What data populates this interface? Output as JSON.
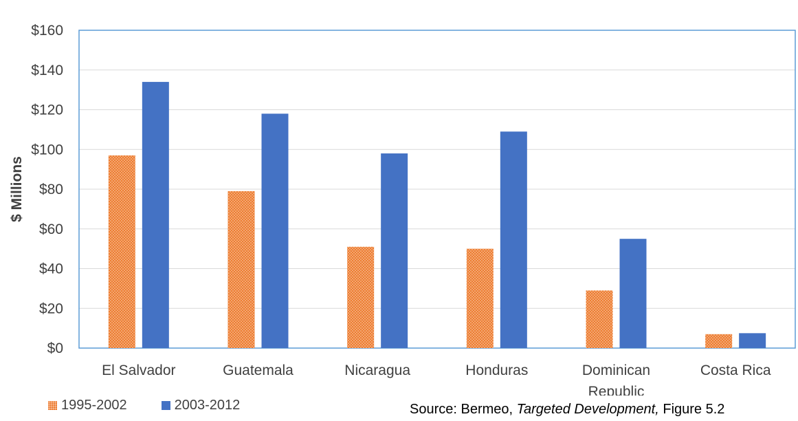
{
  "chart_data": {
    "type": "bar",
    "categories": [
      "El Salvador",
      "Guatemala",
      "Nicaragua",
      "Honduras",
      "Dominican Republic",
      "Costa Rica"
    ],
    "category_lines": [
      [
        "El Salvador"
      ],
      [
        "Guatemala"
      ],
      [
        "Nicaragua"
      ],
      [
        "Honduras"
      ],
      [
        "Dominican",
        "Republic"
      ],
      [
        "Costa Rica"
      ]
    ],
    "series": [
      {
        "name": "1995-2002",
        "values": [
          97,
          79,
          51,
          50,
          29,
          7
        ],
        "color": "#ED7D31",
        "pattern": "dotted"
      },
      {
        "name": "2003-2012",
        "values": [
          134,
          118,
          98,
          109,
          55,
          7.5
        ],
        "color": "#4472C4",
        "pattern": "solid"
      }
    ],
    "ylabel": "$ Millions",
    "xlabel": "",
    "ylim": [
      0,
      160
    ],
    "yticks": [
      0,
      20,
      40,
      60,
      80,
      100,
      120,
      140,
      160
    ],
    "ytick_labels": [
      "$0",
      "$20",
      "$40",
      "$60",
      "$80",
      "$100",
      "$120",
      "$140",
      "$160"
    ],
    "grid": true,
    "legend_position": "bottom-left"
  },
  "source": {
    "prefix": "Source: Bermeo, ",
    "title": "Targeted Development,",
    "suffix": " Figure 5.2"
  }
}
